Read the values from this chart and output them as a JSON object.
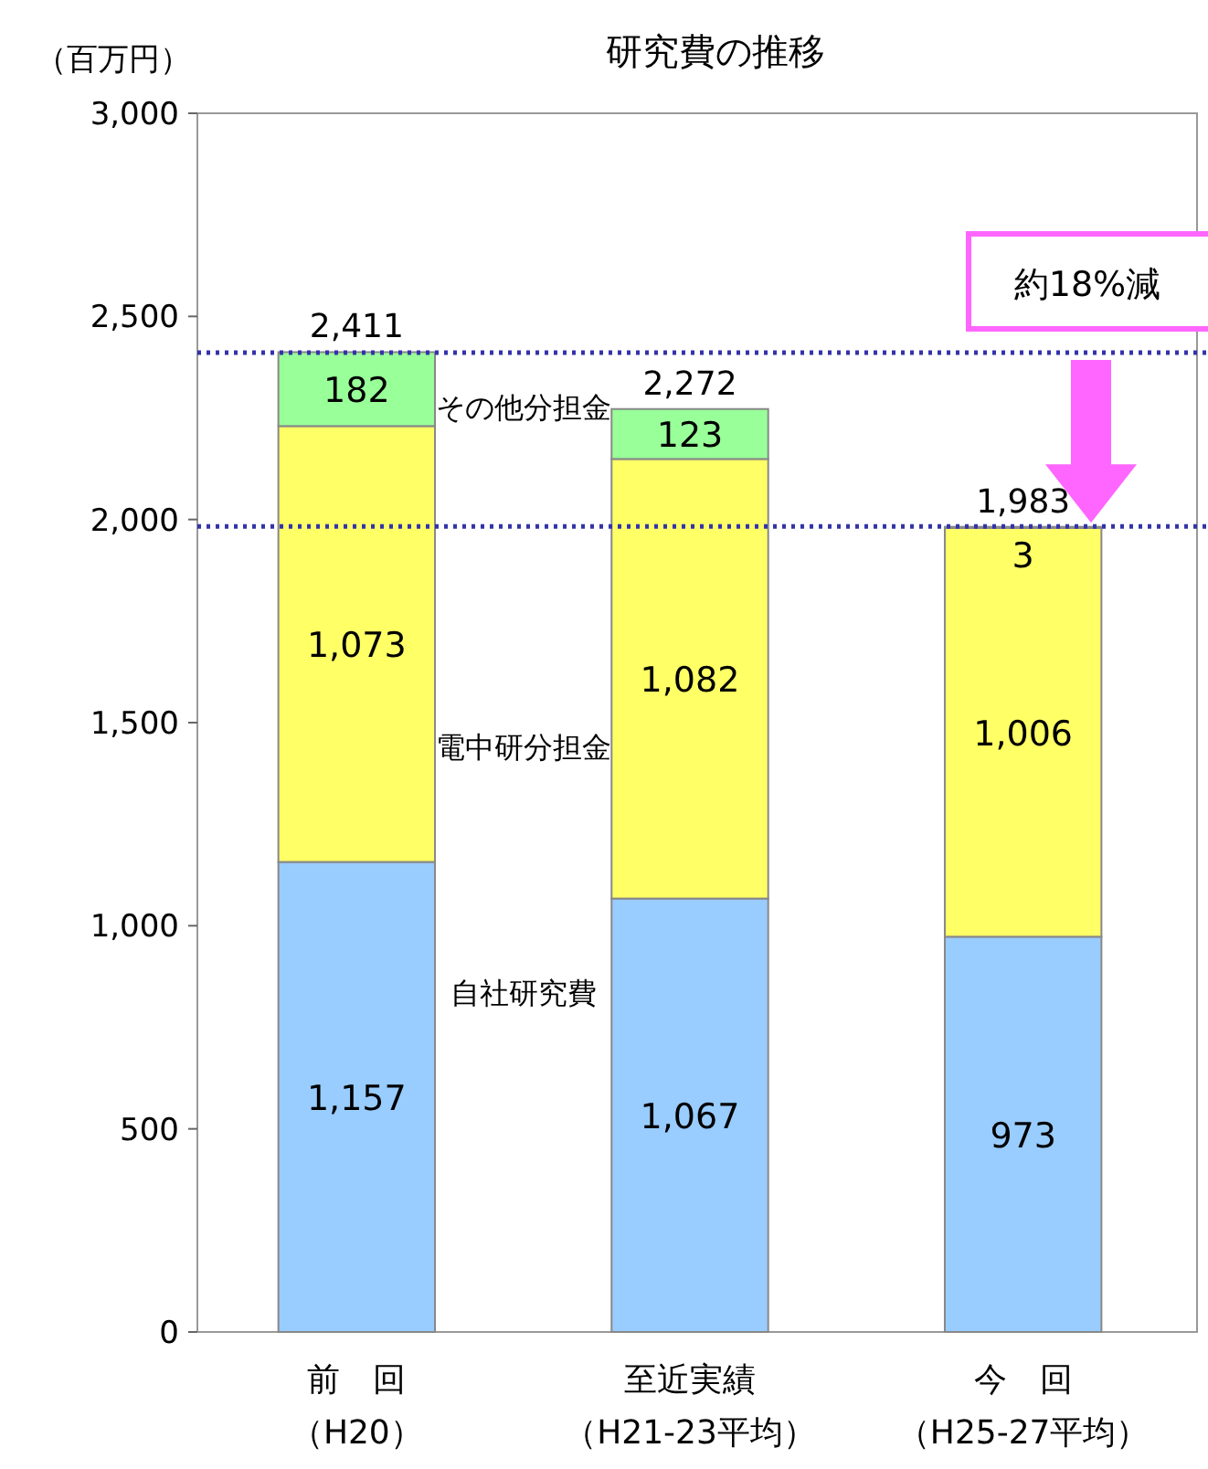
{
  "chart_data": {
    "type": "bar",
    "stacked": true,
    "title": "研究費の推移",
    "ylabel": "（百万円）",
    "categories": [
      "前　回（H20）",
      "至近実績（H21-23平均）",
      "今　回（H25-27平均）"
    ],
    "series": [
      {
        "name": "自社研究費",
        "color": "#99ccff",
        "values": [
          1157,
          1067,
          973
        ],
        "value_labels": [
          "1,157",
          "1,067",
          "973"
        ]
      },
      {
        "name": "電中研分担金",
        "color": "#ffff66",
        "values": [
          1073,
          1082,
          1006
        ],
        "value_labels": [
          "1,073",
          "1,082",
          "1,006"
        ]
      },
      {
        "name": "その他分担金",
        "color": "#99ff99",
        "values": [
          182,
          123,
          3
        ],
        "value_labels": [
          "182",
          "123",
          "3"
        ]
      }
    ],
    "totals": [
      "2,411",
      "2,272",
      "1,983"
    ],
    "ylim": [
      0,
      3000
    ],
    "yticks": [
      {
        "value": 0,
        "label": "0"
      },
      {
        "value": 500,
        "label": "500"
      },
      {
        "value": 1000,
        "label": "1,000"
      },
      {
        "value": 1500,
        "label": "1,500"
      },
      {
        "value": 2000,
        "label": "2,000"
      },
      {
        "value": 2500,
        "label": "2,500"
      },
      {
        "value": 3000,
        "label": "3,000"
      }
    ],
    "ref_lines": [
      {
        "axis": "y",
        "value": 2411,
        "color": "#3333aa",
        "line_style": "dotted"
      },
      {
        "axis": "y",
        "value": 1983,
        "color": "#3333aa",
        "line_style": "dotted"
      }
    ],
    "annotations": [
      "約18%減"
    ],
    "grid": false,
    "legend": false
  }
}
